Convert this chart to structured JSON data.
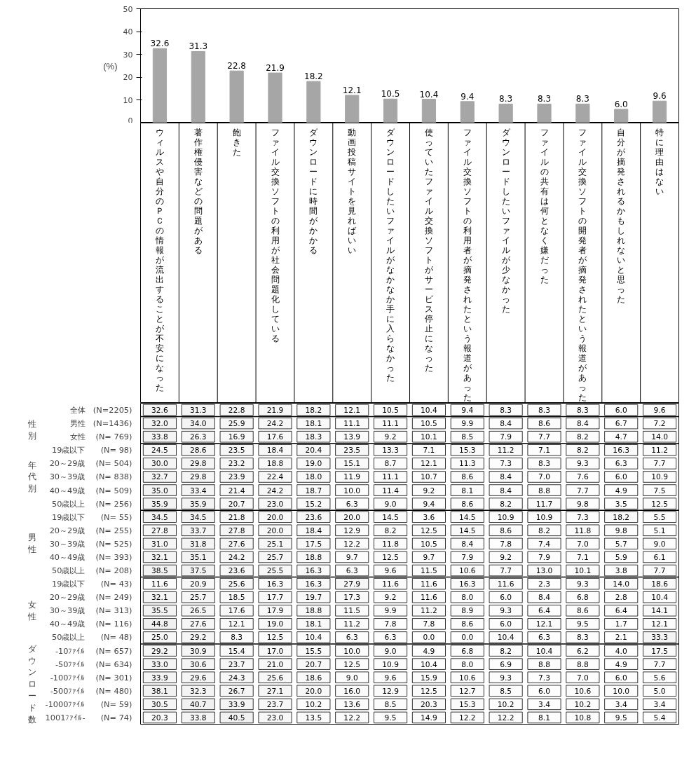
{
  "chart_data": [
    {
      "type": "bar",
      "ylabel": "(%)",
      "categories": [
        "ウィルスや自分のＰＣの情報が流出することが不安になった",
        "著作権侵害などの問題がある",
        "飽きた",
        "ファイル交換ソフトの利用が社会問題化している",
        "ダウンロードに時間がかかる",
        "動画投稿サイトを見ればいい",
        "ダウンロードしたいファイルがなかなか手に入らなかった",
        "使っていたファイル交換ソフトがサービス停止になった",
        "ファイル交換ソフトの利用者が摘発されたという報道があった",
        "ダウンロードしたいファイルが少なかった",
        "ファイルの共有は何となく嫌だった",
        "ファイル交換ソフトの開発者が摘発されたという報道があった",
        "自分が摘発されるかもしれないと思った",
        "特に理由はない"
      ],
      "values": [
        32.6,
        31.3,
        22.8,
        21.9,
        18.2,
        12.1,
        10.5,
        10.4,
        9.4,
        8.3,
        8.3,
        8.3,
        6.0,
        9.6
      ],
      "value_labels": [
        "32.6",
        "31.3",
        "22.8",
        "21.9",
        "18.2",
        "12.1",
        "10.5",
        "10.4",
        "9.4",
        "8.3",
        "8.3",
        "8.3",
        "6.0",
        "9.6"
      ],
      "color": "#a6a6a6",
      "ylim": [
        0,
        50
      ],
      "yticks": [
        0,
        10,
        20,
        30,
        40,
        50
      ],
      "data_labels": true
    },
    {
      "type": "heatmap",
      "tick_labels": "y",
      "categories": [
        "ウィルスや自分のＰＣの情報が流出することが不安になった",
        "著作権侵害などの問題がある",
        "飽きた",
        "ファイル交換ソフトの利用が社会問題化している",
        "ダウンロードに時間がかかる",
        "動画投稿サイトを見ればいい",
        "ダウンロードしたいファイルがなかなか手に入らなかった",
        "使っていたファイル交換ソフトがサービス停止になった",
        "ファイル交換ソフトの利用者が摘発されたという報道があった",
        "ダウンロードしたいファイルが少なかった",
        "ファイルの共有は何となく嫌だった",
        "ファイル交換ソフトの開発者が摘発されたという報道があった",
        "自分が摘発されるかもしれないと思った",
        "特に理由はない"
      ],
      "y_categories": [
        "全体",
        "男性",
        "女性",
        "19歳以下",
        "20～29歳",
        "30～39歳",
        "40～49歳",
        "50歳以上",
        "19歳以下",
        "20～29歳",
        "30～39歳",
        "40～49歳",
        "50歳以上",
        "19歳以下",
        "20～29歳",
        "30～39歳",
        "40～49歳",
        "50歳以上",
        "-10ﾌｧｲﾙ",
        "-50ﾌｧｲﾙ",
        "-100ﾌｧｲﾙ",
        "-500ﾌｧｲﾙ",
        "-1000ﾌｧｲﾙ",
        "1001ﾌｧｲﾙ-"
      ],
      "y2_categories": [
        "(N=2205)",
        "(N=1436)",
        "(N= 769)",
        "(N= 98)",
        "(N= 504)",
        "(N= 838)",
        "(N= 509)",
        "(N= 256)",
        "(N= 55)",
        "(N= 255)",
        "(N= 525)",
        "(N= 393)",
        "(N= 208)",
        "(N= 43)",
        "(N= 249)",
        "(N= 313)",
        "(N= 116)",
        "(N= 48)",
        "(N= 657)",
        "(N= 634)",
        "(N= 301)",
        "(N= 480)",
        "(N= 59)",
        "(N= 74)"
      ],
      "annotations": [
        "性別",
        "年代別",
        "男性",
        "女性",
        "ダウンロード数"
      ],
      "cell_labels": [
        [
          "32.6",
          "31.3",
          "22.8",
          "21.9",
          "18.2",
          "12.1",
          "10.5",
          "10.4",
          "9.4",
          "8.3",
          "8.3",
          "8.3",
          "6.0",
          "9.6"
        ],
        [
          "32.0",
          "34.0",
          "25.9",
          "24.2",
          "18.1",
          "11.1",
          "11.1",
          "10.5",
          "9.9",
          "8.4",
          "8.6",
          "8.4",
          "6.7",
          "7.2"
        ],
        [
          "33.8",
          "26.3",
          "16.9",
          "17.6",
          "18.3",
          "13.9",
          "9.2",
          "10.1",
          "8.5",
          "7.9",
          "7.7",
          "8.2",
          "4.7",
          "14.0"
        ],
        [
          "24.5",
          "28.6",
          "23.5",
          "18.4",
          "20.4",
          "23.5",
          "13.3",
          "7.1",
          "15.3",
          "11.2",
          "7.1",
          "8.2",
          "16.3",
          "11.2"
        ],
        [
          "30.0",
          "29.8",
          "23.2",
          "18.8",
          "19.0",
          "15.1",
          "8.7",
          "12.1",
          "11.3",
          "7.3",
          "8.3",
          "9.3",
          "6.3",
          "7.7"
        ],
        [
          "32.7",
          "29.8",
          "23.9",
          "22.4",
          "18.0",
          "11.9",
          "11.1",
          "10.7",
          "8.6",
          "8.4",
          "7.0",
          "7.6",
          "6.0",
          "10.9"
        ],
        [
          "35.0",
          "33.4",
          "21.4",
          "24.2",
          "18.7",
          "10.0",
          "11.4",
          "9.2",
          "8.1",
          "8.4",
          "8.8",
          "7.7",
          "4.9",
          "7.5"
        ],
        [
          "35.9",
          "35.9",
          "20.7",
          "23.0",
          "15.2",
          "6.3",
          "9.0",
          "9.4",
          "8.6",
          "8.2",
          "11.7",
          "9.8",
          "3.5",
          "12.5"
        ],
        [
          "34.5",
          "34.5",
          "21.8",
          "20.0",
          "23.6",
          "20.0",
          "14.5",
          "3.6",
          "14.5",
          "10.9",
          "10.9",
          "7.3",
          "18.2",
          "5.5"
        ],
        [
          "27.8",
          "33.7",
          "27.8",
          "20.0",
          "18.4",
          "12.9",
          "8.2",
          "12.5",
          "14.5",
          "8.6",
          "8.2",
          "11.8",
          "9.8",
          "5.1"
        ],
        [
          "31.0",
          "31.8",
          "27.6",
          "25.1",
          "17.5",
          "12.2",
          "11.8",
          "10.5",
          "8.4",
          "7.8",
          "7.4",
          "7.0",
          "5.7",
          "9.0"
        ],
        [
          "32.1",
          "35.1",
          "24.2",
          "25.7",
          "18.8",
          "9.7",
          "12.5",
          "9.7",
          "7.9",
          "9.2",
          "7.9",
          "7.1",
          "5.9",
          "6.1"
        ],
        [
          "38.5",
          "37.5",
          "23.6",
          "25.5",
          "16.3",
          "6.3",
          "9.6",
          "11.5",
          "10.6",
          "7.7",
          "13.0",
          "10.1",
          "3.8",
          "7.7"
        ],
        [
          "11.6",
          "20.9",
          "25.6",
          "16.3",
          "16.3",
          "27.9",
          "11.6",
          "11.6",
          "16.3",
          "11.6",
          "2.3",
          "9.3",
          "14.0",
          "18.6"
        ],
        [
          "32.1",
          "25.7",
          "18.5",
          "17.7",
          "19.7",
          "17.3",
          "9.2",
          "11.6",
          "8.0",
          "6.0",
          "8.4",
          "6.8",
          "2.8",
          "10.4"
        ],
        [
          "35.5",
          "26.5",
          "17.6",
          "17.9",
          "18.8",
          "11.5",
          "9.9",
          "11.2",
          "8.9",
          "9.3",
          "6.4",
          "8.6",
          "6.4",
          "14.1"
        ],
        [
          "44.8",
          "27.6",
          "12.1",
          "19.0",
          "18.1",
          "11.2",
          "7.8",
          "7.8",
          "8.6",
          "6.0",
          "12.1",
          "9.5",
          "1.7",
          "12.1"
        ],
        [
          "25.0",
          "29.2",
          "8.3",
          "12.5",
          "10.4",
          "6.3",
          "6.3",
          "0.0",
          "0.0",
          "10.4",
          "6.3",
          "8.3",
          "2.1",
          "33.3"
        ],
        [
          "29.2",
          "30.9",
          "15.4",
          "17.0",
          "15.5",
          "10.0",
          "9.0",
          "4.9",
          "6.8",
          "8.2",
          "10.4",
          "6.2",
          "4.0",
          "17.5"
        ],
        [
          "33.0",
          "30.6",
          "23.7",
          "21.0",
          "20.7",
          "12.5",
          "10.9",
          "10.4",
          "8.0",
          "6.9",
          "8.8",
          "8.8",
          "4.9",
          "7.7"
        ],
        [
          "33.9",
          "29.6",
          "24.3",
          "25.6",
          "18.6",
          "9.0",
          "9.6",
          "15.9",
          "10.6",
          "9.3",
          "7.3",
          "7.0",
          "6.0",
          "5.6"
        ],
        [
          "38.1",
          "32.3",
          "26.7",
          "27.1",
          "20.0",
          "16.0",
          "12.9",
          "12.5",
          "12.7",
          "8.5",
          "6.0",
          "10.6",
          "10.0",
          "5.0"
        ],
        [
          "30.5",
          "40.7",
          "33.9",
          "23.7",
          "10.2",
          "13.6",
          "8.5",
          "20.3",
          "15.3",
          "10.2",
          "3.4",
          "10.2",
          "3.4",
          "3.4"
        ],
        [
          "20.3",
          "33.8",
          "40.5",
          "23.0",
          "13.5",
          "12.2",
          "9.5",
          "14.9",
          "12.2",
          "12.2",
          "8.1",
          "10.8",
          "9.5",
          "5.4"
        ]
      ],
      "cells": [
        [
          32.6,
          31.3,
          22.8,
          21.9,
          18.2,
          12.1,
          10.5,
          10.4,
          9.4,
          8.3,
          8.3,
          8.3,
          6.0,
          9.6
        ],
        [
          32.0,
          34.0,
          25.9,
          24.2,
          18.1,
          11.1,
          11.1,
          10.5,
          9.9,
          8.4,
          8.6,
          8.4,
          6.7,
          7.2
        ],
        [
          33.8,
          26.3,
          16.9,
          17.6,
          18.3,
          13.9,
          9.2,
          10.1,
          8.5,
          7.9,
          7.7,
          8.2,
          4.7,
          14.0
        ],
        [
          24.5,
          28.6,
          23.5,
          18.4,
          20.4,
          23.5,
          13.3,
          7.1,
          15.3,
          11.2,
          7.1,
          8.2,
          16.3,
          11.2
        ],
        [
          30.0,
          29.8,
          23.2,
          18.8,
          19.0,
          15.1,
          8.7,
          12.1,
          11.3,
          7.3,
          8.3,
          9.3,
          6.3,
          7.7
        ],
        [
          32.7,
          29.8,
          23.9,
          22.4,
          18.0,
          11.9,
          11.1,
          10.7,
          8.6,
          8.4,
          7.0,
          7.6,
          6.0,
          10.9
        ],
        [
          35.0,
          33.4,
          21.4,
          24.2,
          18.7,
          10.0,
          11.4,
          9.2,
          8.1,
          8.4,
          8.8,
          7.7,
          4.9,
          7.5
        ],
        [
          35.9,
          35.9,
          20.7,
          23.0,
          15.2,
          6.3,
          9.0,
          9.4,
          8.6,
          8.2,
          11.7,
          9.8,
          3.5,
          12.5
        ],
        [
          34.5,
          34.5,
          21.8,
          20.0,
          23.6,
          20.0,
          14.5,
          3.6,
          14.5,
          10.9,
          10.9,
          7.3,
          18.2,
          5.5
        ],
        [
          27.8,
          33.7,
          27.8,
          20.0,
          18.4,
          12.9,
          8.2,
          12.5,
          14.5,
          8.6,
          8.2,
          11.8,
          9.8,
          5.1
        ],
        [
          31.0,
          31.8,
          27.6,
          25.1,
          17.5,
          12.2,
          11.8,
          10.5,
          8.4,
          7.8,
          7.4,
          7.0,
          5.7,
          9.0
        ],
        [
          32.1,
          35.1,
          24.2,
          25.7,
          18.8,
          9.7,
          12.5,
          9.7,
          7.9,
          9.2,
          7.9,
          7.1,
          5.9,
          6.1
        ],
        [
          38.5,
          37.5,
          23.6,
          25.5,
          16.3,
          6.3,
          9.6,
          11.5,
          10.6,
          7.7,
          13.0,
          10.1,
          3.8,
          7.7
        ],
        [
          11.6,
          20.9,
          25.6,
          16.3,
          16.3,
          27.9,
          11.6,
          11.6,
          16.3,
          11.6,
          2.3,
          9.3,
          14.0,
          18.6
        ],
        [
          32.1,
          25.7,
          18.5,
          17.7,
          19.7,
          17.3,
          9.2,
          11.6,
          8.0,
          6.0,
          8.4,
          6.8,
          2.8,
          10.4
        ],
        [
          35.5,
          26.5,
          17.6,
          17.9,
          18.8,
          11.5,
          9.9,
          11.2,
          8.9,
          9.3,
          6.4,
          8.6,
          6.4,
          14.1
        ],
        [
          44.8,
          27.6,
          12.1,
          19.0,
          18.1,
          11.2,
          7.8,
          7.8,
          8.6,
          6.0,
          12.1,
          9.5,
          1.7,
          12.1
        ],
        [
          25.0,
          29.2,
          8.3,
          12.5,
          10.4,
          6.3,
          6.3,
          0.0,
          0.0,
          10.4,
          6.3,
          8.3,
          2.1,
          33.3
        ],
        [
          29.2,
          30.9,
          15.4,
          17.0,
          15.5,
          10.0,
          9.0,
          4.9,
          6.8,
          8.2,
          10.4,
          6.2,
          4.0,
          17.5
        ],
        [
          33.0,
          30.6,
          23.7,
          21.0,
          20.7,
          12.5,
          10.9,
          10.4,
          8.0,
          6.9,
          8.8,
          8.8,
          4.9,
          7.7
        ],
        [
          33.9,
          29.6,
          24.3,
          25.6,
          18.6,
          9.0,
          9.6,
          15.9,
          10.6,
          9.3,
          7.3,
          7.0,
          6.0,
          5.6
        ],
        [
          38.1,
          32.3,
          26.7,
          27.1,
          20.0,
          16.0,
          12.9,
          12.5,
          12.7,
          8.5,
          6.0,
          10.6,
          10.0,
          5.0
        ],
        [
          30.5,
          40.7,
          33.9,
          23.7,
          10.2,
          13.6,
          8.5,
          20.3,
          15.3,
          10.2,
          3.4,
          10.2,
          3.4,
          3.4
        ],
        [
          20.3,
          33.8,
          40.5,
          23.0,
          13.5,
          12.2,
          9.5,
          14.9,
          12.2,
          12.2,
          8.1,
          10.8,
          9.5,
          5.4
        ]
      ]
    }
  ]
}
